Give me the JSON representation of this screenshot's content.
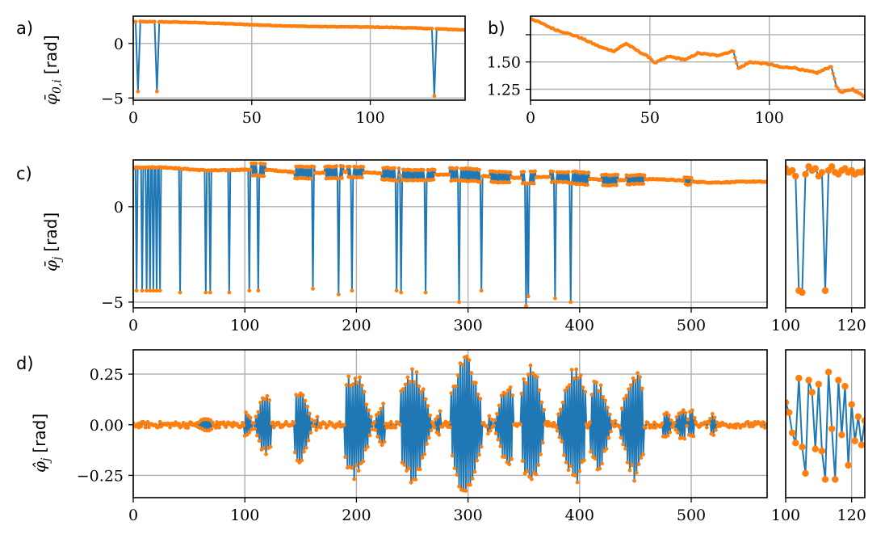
{
  "colors": {
    "series_line": "#1f77b4",
    "series_markers": "#ff7f0e",
    "grid": "#b0b0b0"
  },
  "chart_data": [
    {
      "panel": "a)",
      "type": "line",
      "ylabel": "φ̄_{0,i}  [rad]",
      "ylabel_symbol": "φ̄",
      "ylabel_sub": "0,i",
      "ylabel_unit": "[rad]",
      "xlim": [
        0,
        140
      ],
      "ylim": [
        -5.2,
        2.5
      ],
      "xticks": [
        0,
        50,
        100
      ],
      "yticks": [
        0,
        -5
      ],
      "grid": true,
      "series": [
        {
          "x_start": 0,
          "x_end": 140,
          "y_start": 2.0,
          "y_end": 1.25,
          "dropouts": [
            [
              2,
              -4.4
            ],
            [
              10,
              -4.4
            ],
            [
              127,
              -4.8
            ]
          ]
        }
      ]
    },
    {
      "panel": "b)",
      "type": "line",
      "xlim": [
        0,
        140
      ],
      "ylim": [
        1.15,
        1.92
      ],
      "xticks": [
        0,
        50,
        100
      ],
      "yticks": [
        1.75,
        1.5,
        1.25
      ],
      "ytick_labels": [
        "",
        "1.50",
        "1.25"
      ],
      "grid": true,
      "series": [
        {
          "points": [
            [
              0,
              1.9
            ],
            [
              10,
              1.8
            ],
            [
              20,
              1.73
            ],
            [
              30,
              1.63
            ],
            [
              35,
              1.6
            ],
            [
              40,
              1.67
            ],
            [
              45,
              1.6
            ],
            [
              50,
              1.54
            ],
            [
              52,
              1.49
            ],
            [
              58,
              1.55
            ],
            [
              65,
              1.52
            ],
            [
              70,
              1.58
            ],
            [
              78,
              1.56
            ],
            [
              85,
              1.6
            ],
            [
              87,
              1.44
            ],
            [
              92,
              1.5
            ],
            [
              100,
              1.48
            ],
            [
              105,
              1.45
            ],
            [
              110,
              1.45
            ],
            [
              115,
              1.42
            ],
            [
              120,
              1.4
            ],
            [
              126,
              1.46
            ],
            [
              128,
              1.28
            ],
            [
              130,
              1.22
            ],
            [
              135,
              1.25
            ],
            [
              140,
              1.18
            ]
          ]
        }
      ]
    },
    {
      "panel": "c)",
      "type": "line",
      "ylabel": "φ̄_j  [rad]",
      "ylabel_symbol": "φ̄",
      "ylabel_sub": "j",
      "ylabel_unit": "[rad]",
      "xlim": [
        0,
        568
      ],
      "ylim": [
        -5.3,
        2.45
      ],
      "xticks": [
        0,
        100,
        200,
        300,
        400,
        500
      ],
      "yticks": [
        0,
        -5
      ],
      "grid": true,
      "series": [
        {
          "x_start": 0,
          "x_end": 568,
          "y_start": 2.05,
          "y_end": 1.25,
          "dropouts": [
            [
              3,
              -4.4
            ],
            [
              8,
              -4.4
            ],
            [
              12,
              -4.4
            ],
            [
              15,
              -4.4
            ],
            [
              18,
              -4.4
            ],
            [
              21,
              -4.4
            ],
            [
              24,
              -4.4
            ],
            [
              42,
              -4.5
            ],
            [
              65,
              -4.5
            ],
            [
              69,
              -4.5
            ],
            [
              86,
              -4.5
            ],
            [
              104,
              -4.4
            ],
            [
              112,
              -4.4
            ],
            [
              161,
              -4.3
            ],
            [
              184,
              -4.6
            ],
            [
              196,
              -4.4
            ],
            [
              236,
              -4.4
            ],
            [
              240,
              -4.5
            ],
            [
              262,
              -4.5
            ],
            [
              292,
              -5.0
            ],
            [
              312,
              -4.4
            ],
            [
              352,
              -5.2
            ],
            [
              354,
              -4.7
            ],
            [
              378,
              -4.8
            ],
            [
              392,
              -5.0
            ]
          ],
          "oscillation_bursts": [
            [
              106,
              118,
              0.35
            ],
            [
              145,
              162,
              0.35
            ],
            [
              172,
              188,
              0.35
            ],
            [
              192,
              206,
              0.3
            ],
            [
              223,
              238,
              0.35
            ],
            [
              240,
              270,
              0.3
            ],
            [
              284,
              312,
              0.35
            ],
            [
              320,
              338,
              0.3
            ],
            [
              348,
              360,
              0.35
            ],
            [
              374,
              392,
              0.3
            ],
            [
              392,
              408,
              0.35
            ],
            [
              420,
              434,
              0.3
            ],
            [
              442,
              458,
              0.25
            ],
            [
              494,
              500,
              0.2
            ]
          ]
        }
      ]
    },
    {
      "panel": "c-inset",
      "type": "line",
      "xlim": [
        100,
        124
      ],
      "ylim": [
        -5.3,
        2.45
      ],
      "xticks": [
        100,
        120
      ],
      "grid": true,
      "series": [
        {
          "points": [
            [
              100,
              2.0
            ],
            [
              101,
              1.8
            ],
            [
              102,
              1.9
            ],
            [
              103,
              1.6
            ],
            [
              104,
              -4.4
            ],
            [
              105,
              -4.5
            ],
            [
              106,
              1.7
            ],
            [
              107,
              2.1
            ],
            [
              108,
              1.9
            ],
            [
              109,
              2.0
            ],
            [
              110,
              1.6
            ],
            [
              111,
              1.8
            ],
            [
              112,
              -4.4
            ],
            [
              113,
              1.9
            ],
            [
              114,
              2.1
            ],
            [
              115,
              1.8
            ],
            [
              116,
              1.7
            ],
            [
              117,
              1.9
            ],
            [
              118,
              2.0
            ],
            [
              119,
              1.8
            ],
            [
              120,
              1.9
            ],
            [
              121,
              1.7
            ],
            [
              122,
              1.8
            ],
            [
              123,
              1.8
            ],
            [
              124,
              1.9
            ]
          ]
        }
      ]
    },
    {
      "panel": "d)",
      "type": "line",
      "ylabel": "φ̂_j  [rad]",
      "ylabel_symbol": "φ̂",
      "ylabel_sub": "j",
      "ylabel_unit": "[rad]",
      "xlim": [
        0,
        568
      ],
      "ylim": [
        -0.36,
        0.37
      ],
      "xticks": [
        0,
        100,
        200,
        300,
        400,
        500
      ],
      "yticks": [
        0.25,
        0,
        -0.25
      ],
      "ytick_labels": [
        "0.25",
        "0.00",
        "−0.25"
      ],
      "grid": true,
      "series": [
        {
          "noise_amplitude": 0.015,
          "bursts": [
            [
              53,
              70,
              0.05,
              3.2
            ],
            [
              100,
              123,
              0.27,
              3.2
            ],
            [
              145,
              165,
              0.31,
              3.2
            ],
            [
              190,
              225,
              0.33,
              3.2
            ],
            [
              240,
              275,
              0.31,
              3.2
            ],
            [
              285,
              312,
              0.31,
              3.2
            ],
            [
              318,
              340,
              0.32,
              3.2
            ],
            [
              348,
              368,
              0.3,
              3.2
            ],
            [
              380,
              405,
              0.3,
              3.2
            ],
            [
              410,
              432,
              0.3,
              3.2
            ],
            [
              437,
              457,
              0.28,
              3.2
            ],
            [
              475,
              495,
              0.2,
              3.2
            ],
            [
              497,
              503,
              0.08,
              3.2
            ],
            [
              517,
              522,
              0.06,
              3.2
            ]
          ]
        }
      ]
    },
    {
      "panel": "d-inset",
      "type": "line",
      "xlim": [
        100,
        124
      ],
      "ylim": [
        -0.36,
        0.37
      ],
      "xticks": [
        100,
        120
      ],
      "grid": true,
      "series": [
        {
          "points": [
            [
              100,
              0.11
            ],
            [
              101,
              0.06
            ],
            [
              102,
              -0.04
            ],
            [
              103,
              -0.09
            ],
            [
              104,
              0.23
            ],
            [
              105,
              -0.11
            ],
            [
              106,
              -0.24
            ],
            [
              107,
              0.22
            ],
            [
              108,
              0.16
            ],
            [
              109,
              -0.12
            ],
            [
              110,
              0.2
            ],
            [
              111,
              -0.13
            ],
            [
              112,
              -0.27
            ],
            [
              113,
              0.26
            ],
            [
              114,
              -0.02
            ],
            [
              115,
              -0.27
            ],
            [
              116,
              0.22
            ],
            [
              117,
              -0.05
            ],
            [
              118,
              0.19
            ],
            [
              119,
              -0.2
            ],
            [
              120,
              0.1
            ],
            [
              121,
              -0.08
            ],
            [
              122,
              0.04
            ],
            [
              123,
              -0.1
            ],
            [
              124,
              0.02
            ]
          ]
        }
      ]
    }
  ]
}
